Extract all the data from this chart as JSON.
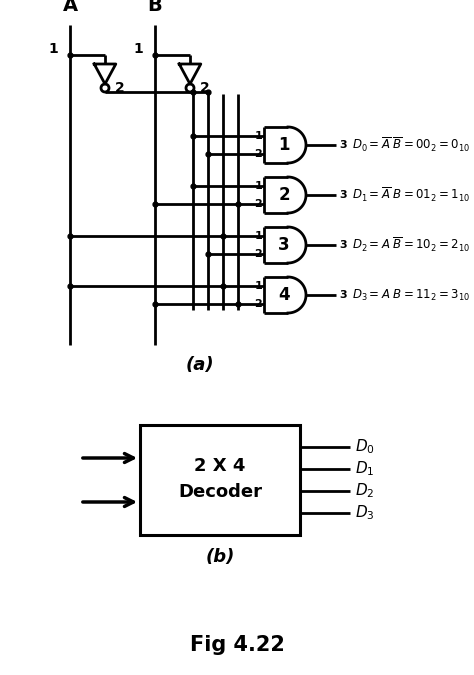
{
  "bg_color": "#ffffff",
  "line_color": "#000000",
  "fig_title": "Fig 4.22",
  "label_a": "A",
  "label_b": "B",
  "gate_labels": [
    "1",
    "2",
    "3",
    "4"
  ],
  "out_texts": [
    "D_0 =\\overline{A}\\ \\overline{B}=00_2=0_{10}",
    "D_1 =\\overline{A}\\ B=01_2=1_{10}",
    "D_2 =A\\ \\overline{B}=10_2=2_{10}",
    "D_3 =A\\ B=11_2=3_{10}"
  ],
  "decoder_line1": "2 X 4",
  "decoder_line2": "Decoder",
  "d_labels": [
    "D_0",
    "D_1",
    "D_2",
    "D_3"
  ],
  "label_a_part": "(a)",
  "label_b_part": "(b)"
}
